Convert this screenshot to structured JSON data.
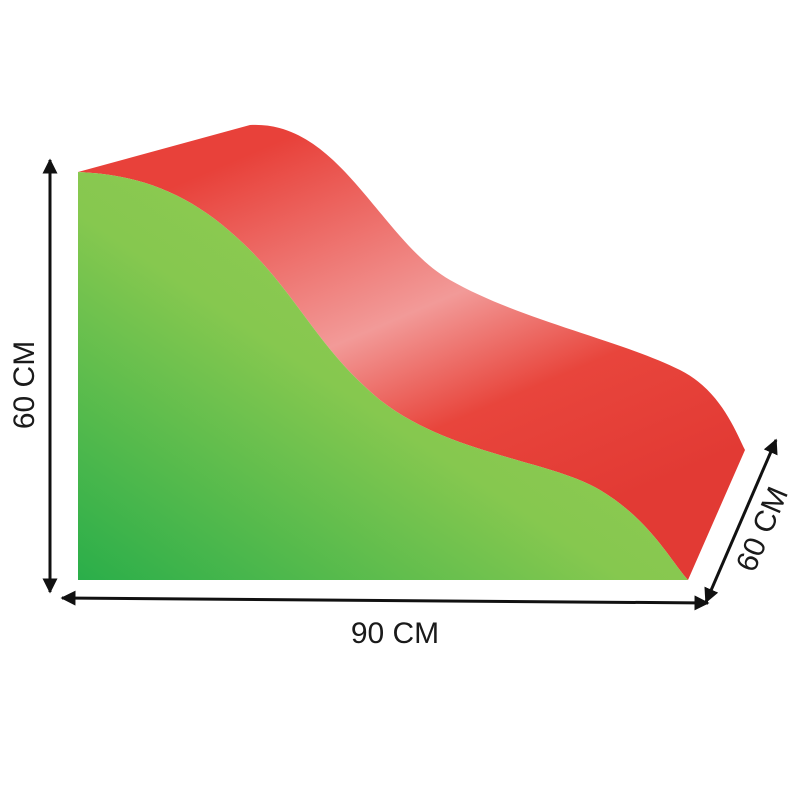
{
  "dimensions": {
    "height": "60 CM",
    "width": "90 CM",
    "depth": "60 CM"
  }
}
